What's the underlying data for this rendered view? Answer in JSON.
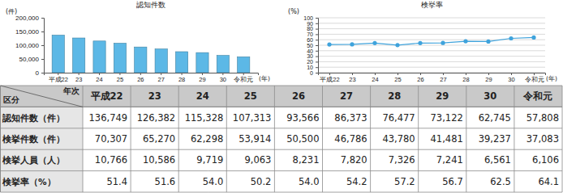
{
  "chart_data": [
    {
      "type": "bar",
      "title": "認知件数",
      "y_label": "(件)",
      "x_label": "(年)",
      "categories": [
        "平成22",
        "23",
        "24",
        "25",
        "26",
        "27",
        "28",
        "29",
        "30",
        "令和元"
      ],
      "values": [
        136749,
        126382,
        115328,
        107313,
        93566,
        86373,
        76477,
        73122,
        62745,
        57808
      ],
      "color": "#5cb8e6",
      "ylim": [
        0,
        200000
      ],
      "yticks": [
        0,
        {
          "value": 50000,
          "label": "50,000"
        },
        {
          "value": 100000,
          "label": "100,000"
        },
        {
          "value": 150000,
          "label": "150,000"
        },
        {
          "value": 200000,
          "label": "200,000"
        }
      ],
      "grid": false
    },
    {
      "type": "line",
      "title": "検挙率",
      "y_label": "(%)",
      "x_label": "(年)",
      "categories": [
        "平成22",
        "23",
        "24",
        "25",
        "26",
        "27",
        "28",
        "29",
        "30",
        "令和元"
      ],
      "values": [
        51.4,
        51.6,
        54.0,
        50.2,
        54.0,
        54.2,
        57.2,
        56.7,
        62.5,
        64.1
      ],
      "color": "#3fa3dc",
      "marker": "circle",
      "ylim": [
        0,
        100
      ],
      "yticks": [
        0,
        10,
        20,
        30,
        40,
        50,
        60,
        70,
        80,
        90,
        100
      ],
      "grid": true
    }
  ],
  "table": {
    "corner_top": "年次",
    "corner_bottom": "区分",
    "columns": [
      "平成22",
      "23",
      "24",
      "25",
      "26",
      "27",
      "28",
      "29",
      "30",
      "令和元"
    ],
    "rows": [
      {
        "label": "認知件数（件）",
        "cells": [
          "136,749",
          "126,382",
          "115,328",
          "107,313",
          "93,566",
          "86,373",
          "76,477",
          "73,122",
          "62,745",
          "57,808"
        ]
      },
      {
        "label": "検挙件数（件）",
        "cells": [
          "70,307",
          "65,270",
          "62,298",
          "53,914",
          "50,500",
          "46,786",
          "43,780",
          "41,481",
          "39,237",
          "37,083"
        ]
      },
      {
        "label": "検挙人員（人）",
        "cells": [
          "10,766",
          "10,586",
          "9,719",
          "9,063",
          "8,231",
          "7,820",
          "7,326",
          "7,241",
          "6,561",
          "6,106"
        ]
      },
      {
        "label": "検挙率（%）",
        "cells": [
          "51.4",
          "51.6",
          "54.0",
          "50.2",
          "54.0",
          "54.2",
          "57.2",
          "56.7",
          "62.5",
          "64.1"
        ]
      }
    ]
  }
}
